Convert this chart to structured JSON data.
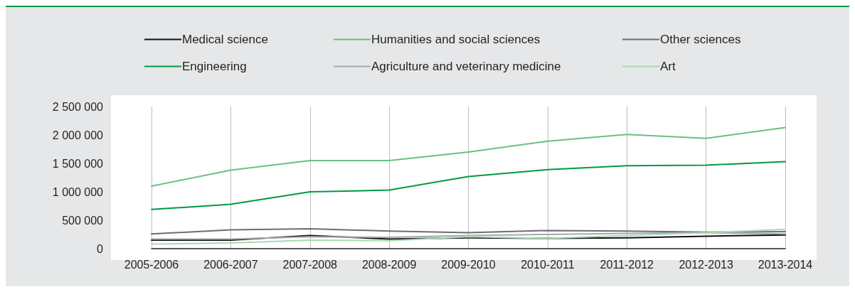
{
  "chart_data": {
    "type": "line",
    "categories": [
      "2005-2006",
      "2006-2007",
      "2007-2008",
      "2008-2009",
      "2009-2010",
      "2010-2011",
      "2011-2012",
      "2012-2013",
      "2013-2014"
    ],
    "series": [
      {
        "name": "Medical science",
        "color": "#111111",
        "values": [
          150000,
          150000,
          230000,
          170000,
          190000,
          180000,
          190000,
          220000,
          240000
        ]
      },
      {
        "name": "Humanities and social sciences",
        "color": "#6abf87",
        "values": [
          1100000,
          1380000,
          1550000,
          1550000,
          1700000,
          1890000,
          2010000,
          1940000,
          2130000
        ]
      },
      {
        "name": "Other sciences",
        "color": "#6d6e71",
        "values": [
          260000,
          330000,
          350000,
          310000,
          280000,
          320000,
          310000,
          290000,
          300000
        ]
      },
      {
        "name": "Engineering",
        "color": "#009a44",
        "values": [
          690000,
          780000,
          1000000,
          1030000,
          1270000,
          1390000,
          1460000,
          1470000,
          1530000
        ]
      },
      {
        "name": "Agriculture and veterinary medicine",
        "color": "#a7a9ac",
        "values": [
          170000,
          170000,
          210000,
          200000,
          230000,
          250000,
          270000,
          280000,
          260000
        ]
      },
      {
        "name": "Art",
        "color": "#a8dab5",
        "values": [
          80000,
          100000,
          150000,
          140000,
          210000,
          180000,
          230000,
          280000,
          340000
        ]
      }
    ],
    "ylim": [
      0,
      2500000
    ],
    "yticks": [
      0,
      {
        "value": 500000,
        "label": "500 000"
      },
      {
        "value": 1000000,
        "label": "1 000 000"
      },
      {
        "value": 1500000,
        "label": "1 500 000"
      },
      {
        "value": 2000000,
        "label": "2 000 000"
      },
      {
        "value": 2500000,
        "label": "2 500 000"
      }
    ],
    "grid": "x",
    "legend": "top",
    "marker": "none",
    "line_style": "solid"
  }
}
